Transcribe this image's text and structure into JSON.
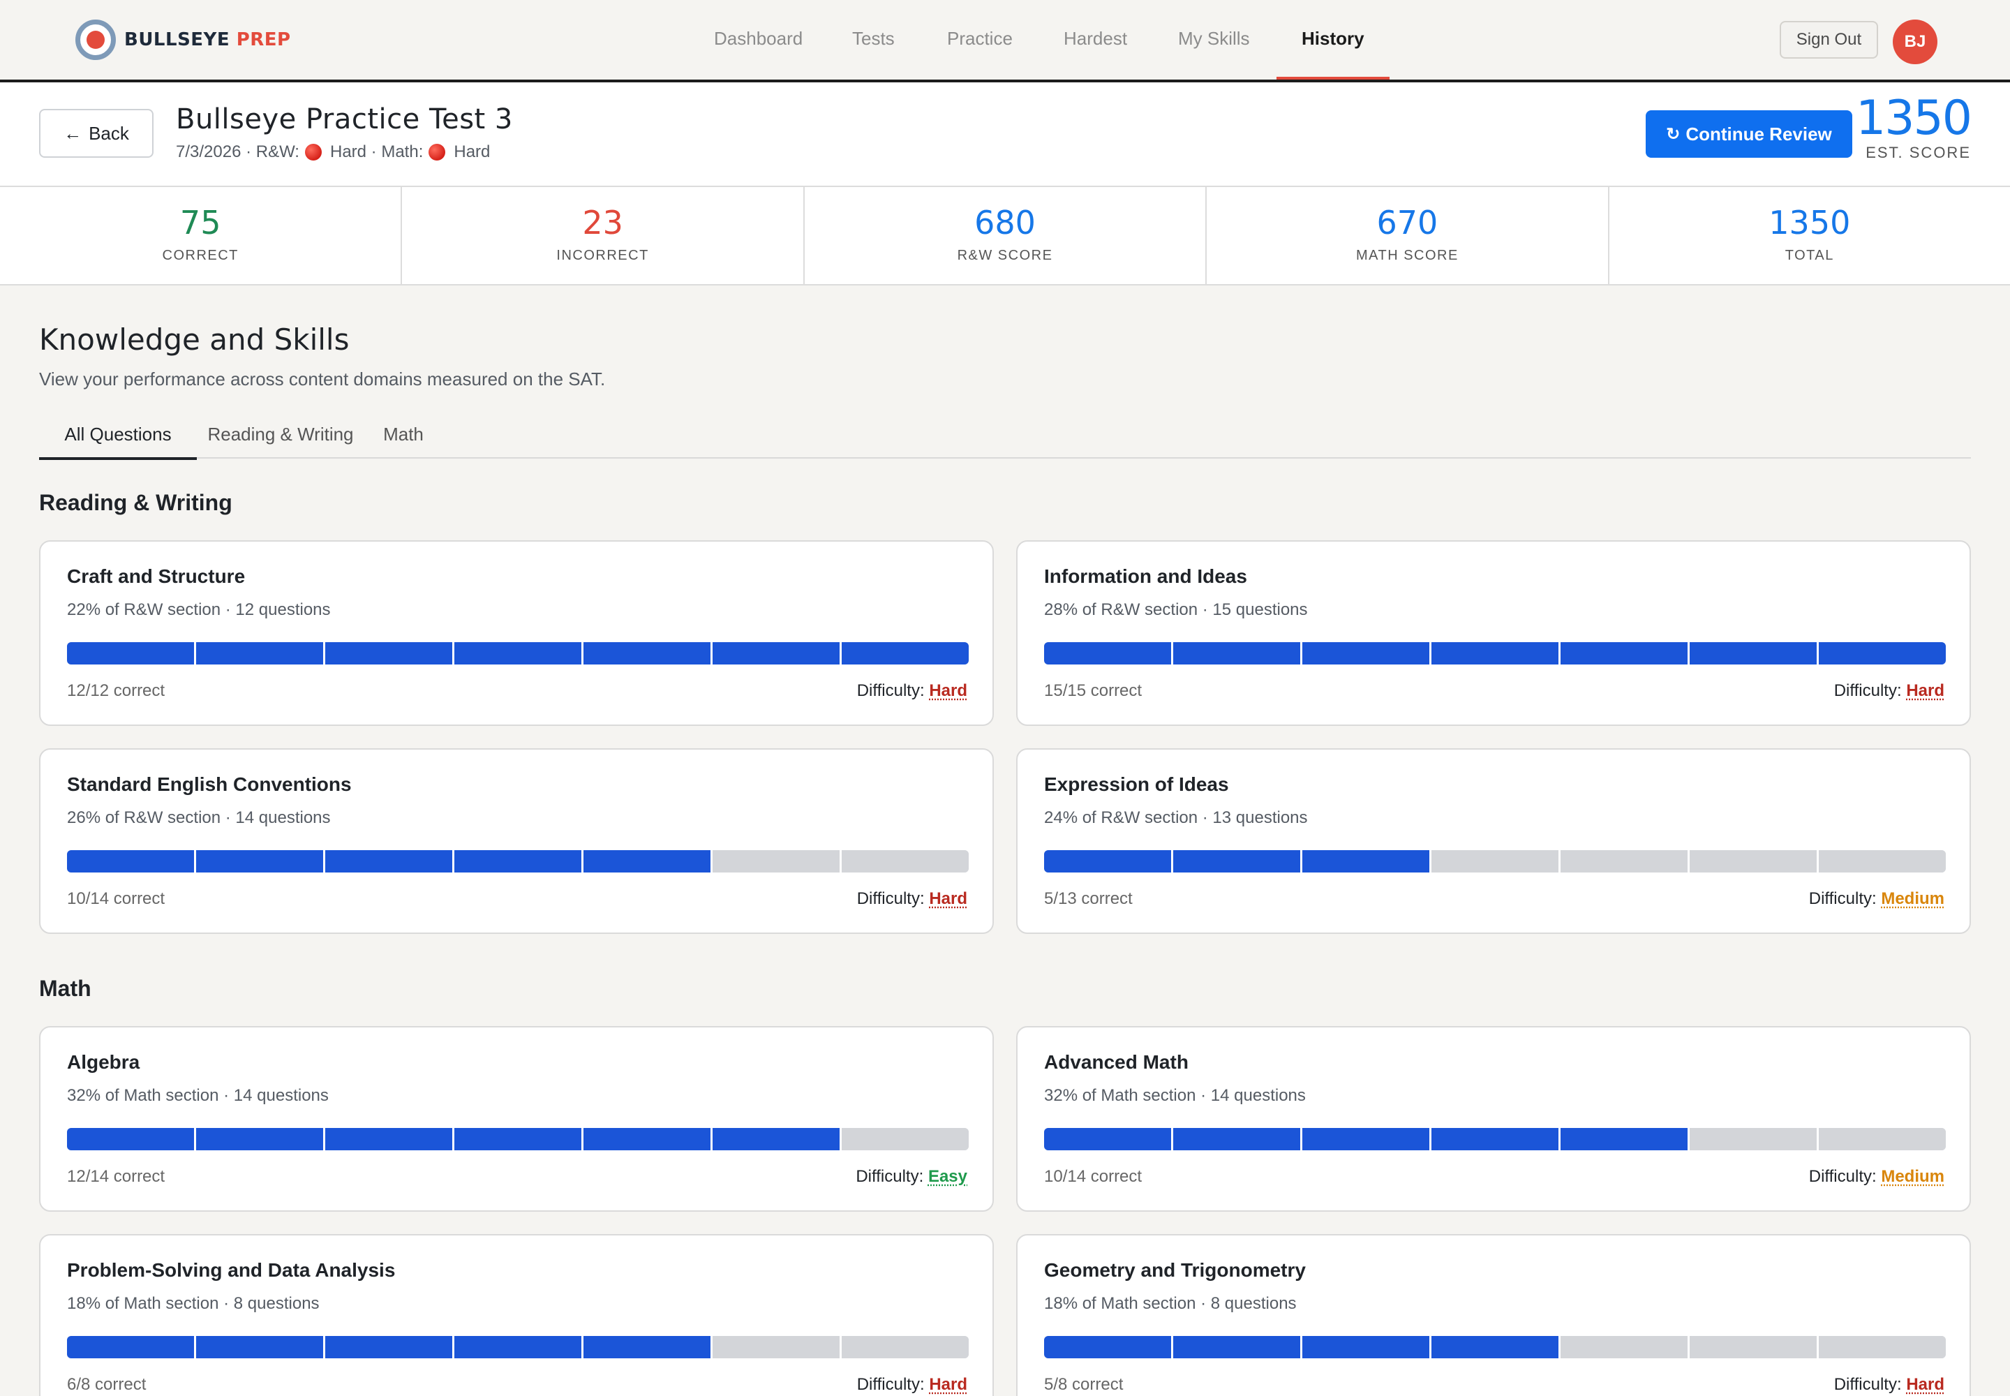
{
  "brand": {
    "word1": "BULLSEYE",
    "word2": "PREP"
  },
  "nav": {
    "links": [
      "Dashboard",
      "Tests",
      "Practice",
      "Hardest",
      "My Skills",
      "History"
    ],
    "active": "History",
    "sign_out": "Sign Out",
    "avatar_initials": "BJ"
  },
  "header": {
    "back_label": "Back",
    "title": "Bullseye Practice Test 3",
    "date": "7/3/2026",
    "rw_label": "R&W:",
    "rw_difficulty": "Hard",
    "math_label": "Math:",
    "math_difficulty": "Hard",
    "continue_label": "Continue Review",
    "est_score": "1350",
    "est_score_label": "EST. SCORE"
  },
  "stats": [
    {
      "value": "75",
      "label": "CORRECT",
      "color": "#1f8a55"
    },
    {
      "value": "23",
      "label": "INCORRECT",
      "color": "#e0483a"
    },
    {
      "value": "680",
      "label": "R&W SCORE",
      "color": "#1677e8"
    },
    {
      "value": "670",
      "label": "MATH SCORE",
      "color": "#1677e8"
    },
    {
      "value": "1350",
      "label": "TOTAL",
      "color": "#1677e8"
    }
  ],
  "skills": {
    "title": "Knowledge and Skills",
    "subtitle": "View your performance across content domains measured on the SAT.",
    "tabs": [
      "All Questions",
      "Reading & Writing",
      "Math"
    ],
    "active_tab": "All Questions",
    "difficulty_label": "Difficulty:",
    "sections": [
      {
        "heading": "Reading & Writing",
        "cards": [
          {
            "title": "Craft and Structure",
            "sub": "22% of R&W section · 12 questions",
            "correct": 12,
            "total": 12,
            "correct_text": "12/12 correct",
            "difficulty": "Hard"
          },
          {
            "title": "Information and Ideas",
            "sub": "28% of R&W section · 15 questions",
            "correct": 15,
            "total": 15,
            "correct_text": "15/15 correct",
            "difficulty": "Hard"
          },
          {
            "title": "Standard English Conventions",
            "sub": "26% of R&W section · 14 questions",
            "correct": 10,
            "total": 14,
            "correct_text": "10/14 correct",
            "difficulty": "Hard"
          },
          {
            "title": "Expression of Ideas",
            "sub": "24% of R&W section · 13 questions",
            "correct": 5,
            "total": 13,
            "correct_text": "5/13 correct",
            "difficulty": "Medium"
          }
        ]
      },
      {
        "heading": "Math",
        "cards": [
          {
            "title": "Algebra",
            "sub": "32% of Math section · 14 questions",
            "correct": 12,
            "total": 14,
            "correct_text": "12/14 correct",
            "difficulty": "Easy"
          },
          {
            "title": "Advanced Math",
            "sub": "32% of Math section · 14 questions",
            "correct": 10,
            "total": 14,
            "correct_text": "10/14 correct",
            "difficulty": "Medium"
          },
          {
            "title": "Problem-Solving and Data Analysis",
            "sub": "18% of Math section · 8 questions",
            "correct": 6,
            "total": 8,
            "correct_text": "6/8 correct",
            "difficulty": "Hard"
          },
          {
            "title": "Geometry and Trigonometry",
            "sub": "18% of Math section · 8 questions",
            "correct": 5,
            "total": 8,
            "correct_text": "5/8 correct",
            "difficulty": "Hard"
          }
        ]
      }
    ]
  },
  "colors": {
    "accent_blue": "#0f6fef",
    "bar_fill": "#1b55d8",
    "bar_empty": "#d3d5d9",
    "brand_red": "#e34b3c"
  }
}
